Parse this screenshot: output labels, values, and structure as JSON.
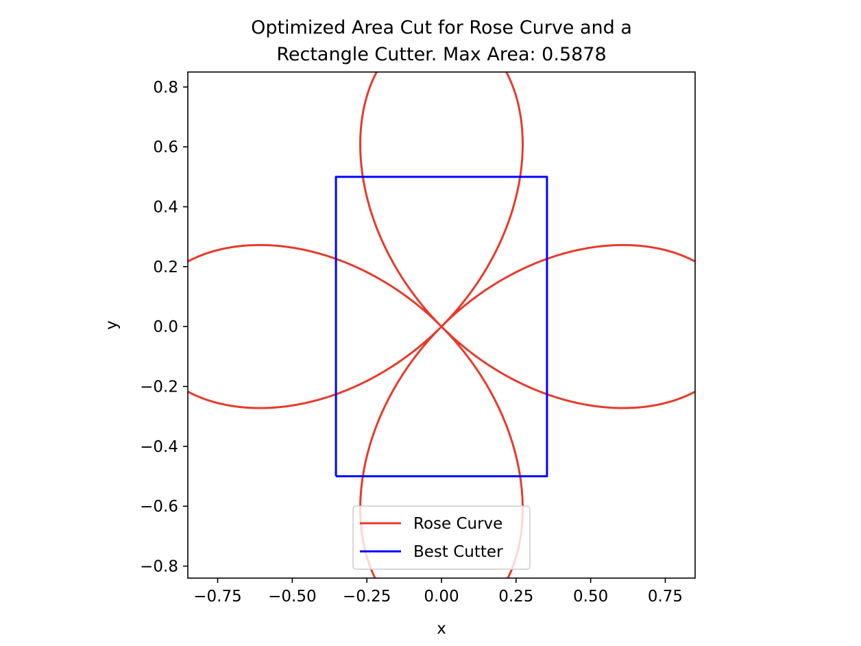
{
  "chart_data": {
    "type": "line",
    "title_lines": [
      "Optimized Area Cut for Rose Curve and a",
      "Rectangle Cutter. Max Area: 0.5878"
    ],
    "xlabel": "x",
    "ylabel": "y",
    "xlim": [
      -0.85,
      0.85
    ],
    "ylim": [
      -0.84,
      0.85
    ],
    "xticks": [
      -0.75,
      -0.5,
      -0.25,
      0.0,
      0.25,
      0.5,
      0.75
    ],
    "xtick_labels": [
      "−0.75",
      "−0.50",
      "−0.25",
      "0.00",
      "0.25",
      "0.50",
      "0.75"
    ],
    "yticks": [
      0.8,
      0.6,
      0.4,
      0.2,
      0.0,
      -0.2,
      -0.4,
      -0.6,
      -0.8
    ],
    "ytick_labels": [
      "0.8",
      "0.6",
      "0.4",
      "0.2",
      "0.0",
      "−0.2",
      "−0.4",
      "−0.6",
      "−0.8"
    ],
    "grid": false,
    "legend_position": "lower center",
    "series": [
      {
        "name": "Rose Curve",
        "color": "#e8392a",
        "kind": "rose",
        "equation": "r = cos(2θ)",
        "theta_range": [
          0,
          6.283185307
        ]
      },
      {
        "name": "Best Cutter",
        "color": "#0000ff",
        "kind": "rectangle",
        "x": [
          -0.3536,
          0.3536,
          0.3536,
          -0.3536,
          -0.3536
        ],
        "y": [
          -0.5,
          -0.5,
          0.5,
          0.5,
          -0.5
        ]
      }
    ]
  }
}
